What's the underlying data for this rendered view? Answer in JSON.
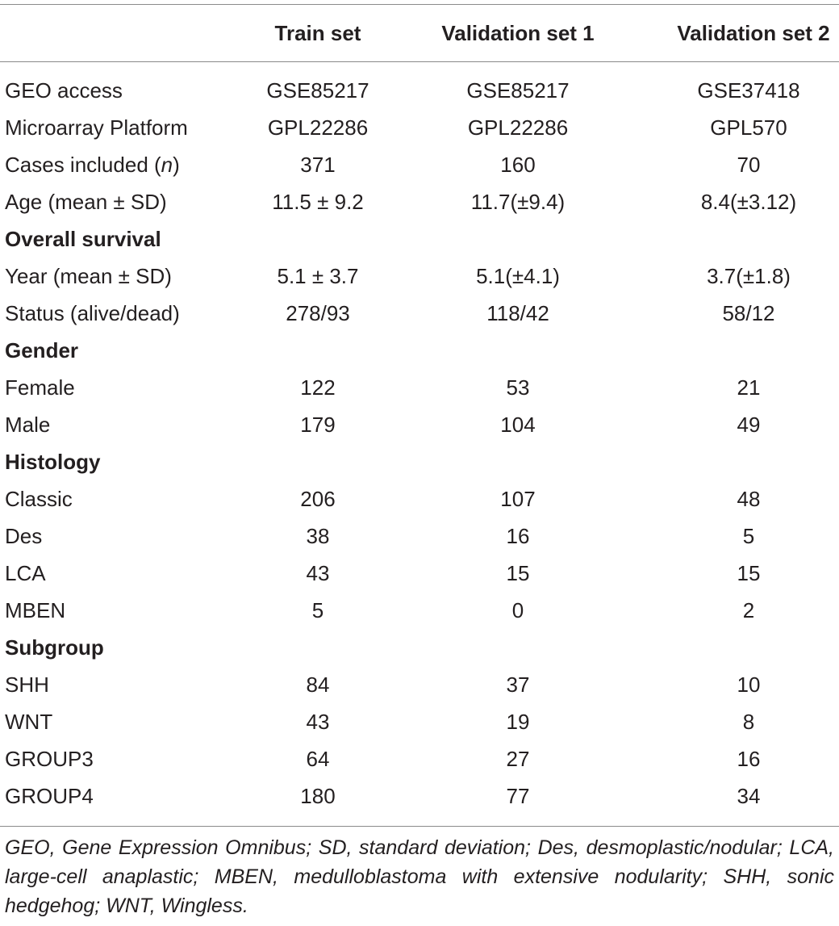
{
  "table": {
    "headers": [
      "",
      "Train set",
      "Validation set 1",
      "Validation set 2"
    ],
    "rows": [
      {
        "label": "GEO access",
        "values": [
          "GSE85217",
          "GSE85217",
          "GSE37418"
        ]
      },
      {
        "label": "Microarray Platform",
        "values": [
          "GPL22286",
          "GPL22286",
          "GPL570"
        ]
      },
      {
        "label_pre": "Cases included (",
        "label_italic": "n",
        "label_post": ")",
        "values": [
          "371",
          "160",
          "70"
        ]
      },
      {
        "label": "Age (mean ± SD)",
        "values": [
          "11.5 ± 9.2",
          "11.7(±9.4)",
          "8.4(±3.12)"
        ]
      },
      {
        "section": "Overall survival"
      },
      {
        "label": "Year (mean ± SD)",
        "values": [
          "5.1 ± 3.7",
          "5.1(±4.1)",
          "3.7(±1.8)"
        ]
      },
      {
        "label": "Status (alive/dead)",
        "values": [
          "278/93",
          "118/42",
          "58/12"
        ]
      },
      {
        "section": "Gender"
      },
      {
        "label": "Female",
        "values": [
          "122",
          "53",
          "21"
        ]
      },
      {
        "label": "Male",
        "values": [
          "179",
          "104",
          "49"
        ]
      },
      {
        "section": "Histology"
      },
      {
        "label": "Classic",
        "values": [
          "206",
          "107",
          "48"
        ]
      },
      {
        "label": "Des",
        "values": [
          "38",
          "16",
          "5"
        ]
      },
      {
        "label": "LCA",
        "values": [
          "43",
          "15",
          "15"
        ]
      },
      {
        "label": "MBEN",
        "values": [
          "5",
          "0",
          "2"
        ]
      },
      {
        "section": "Subgroup"
      },
      {
        "label": "SHH",
        "values": [
          "84",
          "37",
          "10"
        ]
      },
      {
        "label": "WNT",
        "values": [
          "43",
          "19",
          "8"
        ]
      },
      {
        "label": "GROUP3",
        "values": [
          "64",
          "27",
          "16"
        ]
      },
      {
        "label": "GROUP4",
        "values": [
          "180",
          "77",
          "34"
        ]
      }
    ]
  },
  "footnote": "GEO, Gene Expression Omnibus; SD, standard deviation; Des, desmoplastic/nodular; LCA, large-cell anaplastic; MBEN, medulloblastoma with extensive nodularity; SHH, sonic hedgehog; WNT, Wingless.",
  "colors": {
    "text": "#231f20",
    "rule": "#8a8a8a"
  }
}
